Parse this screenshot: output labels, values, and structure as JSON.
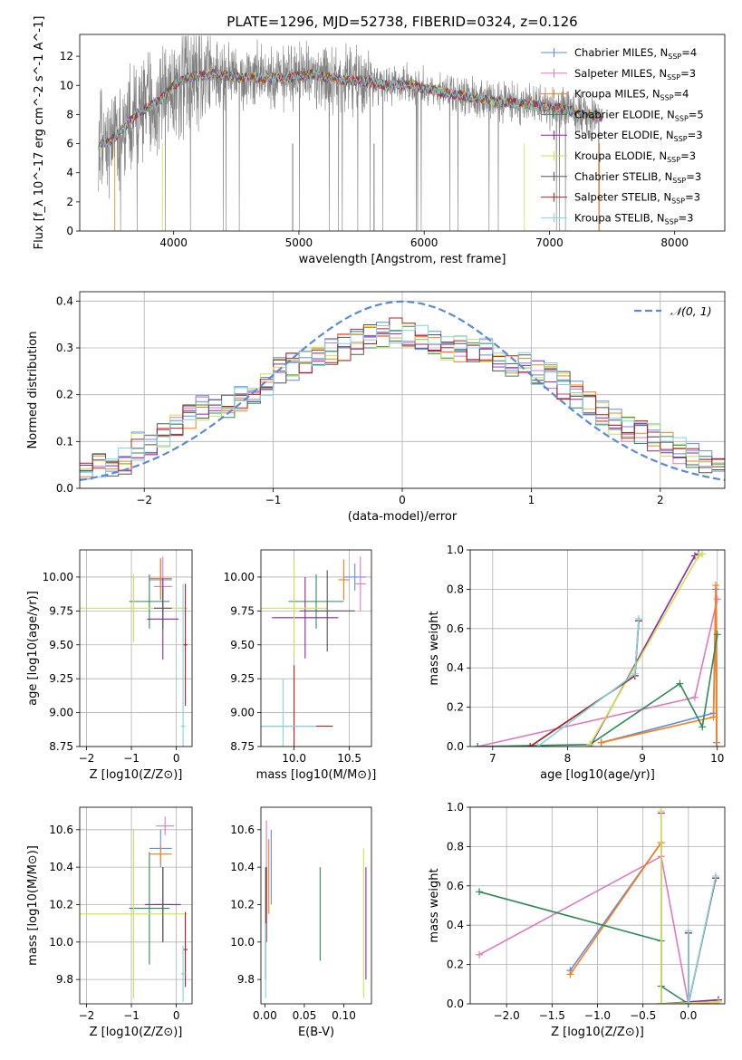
{
  "figure": {
    "suptitle": "PLATE=1296, MJD=52738, FIBERID=0324, z=0.126"
  },
  "legend_colors": {
    "Chabrier MILES": "#5b8def",
    "Salpeter MILES": "#e377c2",
    "Kroupa MILES": "#ff7f0e",
    "Chabrier ELODIE": "#2e8b57",
    "Salpeter ELODIE": "#8e24aa",
    "Kroupa ELODIE": "#c8e64b",
    "Chabrier STELIB": "#555555",
    "Salpeter STELIB": "#b22222",
    "Kroupa STELIB": "#7fd4e6"
  },
  "chart_data": [
    {
      "id": "spectrum",
      "type": "line",
      "title": "",
      "xlabel": "wavelength [Angstrom, rest frame]",
      "ylabel": "Flux [f_λ 10^-17 erg cm^-2 s^-1 A^-1]",
      "xlim": [
        3250,
        8400
      ],
      "ylim": [
        0,
        13.5
      ],
      "xticks": [
        4000,
        5000,
        6000,
        7000,
        8000
      ],
      "yticks": [
        0,
        2,
        4,
        6,
        8,
        10,
        12
      ],
      "grid": false,
      "legend_position": "upper right",
      "data_envelope": {
        "x": [
          3400,
          3500,
          3700,
          3900,
          4000,
          4100,
          4300,
          4500,
          4700,
          4900,
          5100,
          5300,
          5500,
          5700,
          5900,
          6100,
          6300,
          6500,
          6700,
          6900,
          7100,
          7300,
          7400
        ],
        "y": [
          5.9,
          6.2,
          8.0,
          9.0,
          10.0,
          10.5,
          10.8,
          10.6,
          10.5,
          10.5,
          10.8,
          10.4,
          10.3,
          10.0,
          10.0,
          9.6,
          9.3,
          9.0,
          8.8,
          8.6,
          8.4,
          8.0,
          7.9
        ]
      },
      "series": [
        {
          "name": "Chabrier MILES",
          "legend_label": "Chabrier MILES, N_SSP=4"
        },
        {
          "name": "Salpeter MILES",
          "legend_label": "Salpeter MILES, N_SSP=3"
        },
        {
          "name": "Kroupa MILES",
          "legend_label": "Kroupa MILES, N_SSP=4"
        },
        {
          "name": "Chabrier ELODIE",
          "legend_label": "Chabrier ELODIE, N_SSP=5"
        },
        {
          "name": "Salpeter ELODIE",
          "legend_label": "Salpeter ELODIE, N_SSP=3"
        },
        {
          "name": "Kroupa ELODIE",
          "legend_label": "Kroupa ELODIE, N_SSP=3"
        },
        {
          "name": "Chabrier STELIB",
          "legend_label": "Chabrier STELIB, N_SSP=3"
        },
        {
          "name": "Salpeter STELIB",
          "legend_label": "Salpeter STELIB, N_SSP=3"
        },
        {
          "name": "Kroupa STELIB",
          "legend_label": "Kroupa STELIB, N_SSP=3"
        }
      ]
    },
    {
      "id": "residuals",
      "type": "line",
      "title": "",
      "xlabel": "(data-model)/error",
      "ylabel": "Normed distribution",
      "xlim": [
        -2.5,
        2.5
      ],
      "ylim": [
        0,
        0.42
      ],
      "xticks": [
        -2,
        -1,
        0,
        1,
        2
      ],
      "yticks": [
        0.0,
        0.1,
        0.2,
        0.3,
        0.4
      ],
      "grid": true,
      "legend_position": "upper right",
      "reference_curve": {
        "name": "𝒩(0, 1)",
        "mean": 0,
        "sigma": 1,
        "style": "dashed"
      },
      "histogram_centers": [
        -2.45,
        -2.35,
        -2.25,
        -2.15,
        -2.05,
        -1.95,
        -1.85,
        -1.75,
        -1.65,
        -1.55,
        -1.45,
        -1.35,
        -1.25,
        -1.15,
        -1.05,
        -0.95,
        -0.85,
        -0.75,
        -0.65,
        -0.55,
        -0.45,
        -0.35,
        -0.25,
        -0.15,
        -0.05,
        0.05,
        0.15,
        0.25,
        0.35,
        0.45,
        0.55,
        0.65,
        0.75,
        0.85,
        0.95,
        1.05,
        1.15,
        1.25,
        1.35,
        1.45,
        1.55,
        1.65,
        1.75,
        1.85,
        1.95,
        2.05,
        2.15,
        2.25,
        2.35,
        2.45
      ],
      "histogram_mean": [
        0.04,
        0.045,
        0.05,
        0.06,
        0.09,
        0.085,
        0.11,
        0.13,
        0.15,
        0.17,
        0.17,
        0.18,
        0.19,
        0.2,
        0.22,
        0.25,
        0.26,
        0.27,
        0.28,
        0.29,
        0.3,
        0.31,
        0.33,
        0.33,
        0.34,
        0.33,
        0.32,
        0.31,
        0.3,
        0.3,
        0.3,
        0.3,
        0.27,
        0.26,
        0.27,
        0.25,
        0.24,
        0.22,
        0.2,
        0.18,
        0.16,
        0.14,
        0.13,
        0.12,
        0.11,
        0.09,
        0.08,
        0.07,
        0.06,
        0.06
      ]
    },
    {
      "id": "age-vs-Z",
      "type": "scatter",
      "title": "",
      "xlabel": "Z [log10(Z/Z⊙)]",
      "ylabel": "age [log10(age/yr)]",
      "xlim": [
        -2.15,
        0.35
      ],
      "ylim": [
        8.75,
        10.2
      ],
      "xticks": [
        -2,
        -1,
        0
      ],
      "yticks": [
        8.75,
        9.0,
        9.25,
        9.5,
        9.75,
        10.0
      ],
      "grid": true,
      "points": [
        {
          "series": "Chabrier MILES",
          "x": -0.35,
          "y": 9.98,
          "xerr": 0.25,
          "yerr": 0.15
        },
        {
          "series": "Salpeter MILES",
          "x": -0.3,
          "y": 9.93,
          "xerr": 0.2,
          "yerr": 0.22
        },
        {
          "series": "Kroupa MILES",
          "x": -0.35,
          "y": 9.99,
          "xerr": 0.25,
          "yerr": 0.15
        },
        {
          "series": "Chabrier ELODIE",
          "x": -0.6,
          "y": 9.82,
          "xerr": 0.45,
          "yerr": 0.2
        },
        {
          "series": "Salpeter ELODIE",
          "x": -0.3,
          "y": 9.69,
          "xerr": 0.35,
          "yerr": 0.3
        },
        {
          "series": "Kroupa ELODIE",
          "x": -0.95,
          "y": 9.77,
          "xerr": 1.2,
          "yerr": 0.25
        },
        {
          "series": "Chabrier STELIB",
          "x": -0.3,
          "y": 9.77,
          "xerr": 0.2,
          "yerr": 0.15
        },
        {
          "series": "Salpeter STELIB",
          "x": 0.2,
          "y": 9.5,
          "xerr": 0.05,
          "yerr": 0.45
        },
        {
          "series": "Kroupa STELIB",
          "x": 0.15,
          "y": 8.9,
          "xerr": 0.05,
          "yerr": 1.05
        }
      ]
    },
    {
      "id": "age-vs-mass",
      "type": "scatter",
      "title": "",
      "xlabel": "mass [log10(M/M⊙)]",
      "ylabel": "",
      "xlim": [
        9.7,
        10.7
      ],
      "ylim": [
        8.75,
        10.2
      ],
      "xticks": [
        10.0,
        10.5
      ],
      "yticks": [
        8.75,
        9.0,
        9.25,
        9.5,
        9.75,
        10.0
      ],
      "grid": true,
      "points": [
        {
          "series": "Chabrier MILES",
          "x": 10.55,
          "y": 10.0,
          "xerr": 0.1,
          "yerr": 0.1
        },
        {
          "series": "Salpeter MILES",
          "x": 10.6,
          "y": 9.95,
          "xerr": 0.05,
          "yerr": 0.2
        },
        {
          "series": "Kroupa MILES",
          "x": 10.45,
          "y": 9.98,
          "xerr": 0.05,
          "yerr": 0.15
        },
        {
          "series": "Chabrier ELODIE",
          "x": 10.2,
          "y": 9.82,
          "xerr": 0.25,
          "yerr": 0.2
        },
        {
          "series": "Salpeter ELODIE",
          "x": 10.1,
          "y": 9.7,
          "xerr": 0.3,
          "yerr": 0.3
        },
        {
          "series": "Kroupa ELODIE",
          "x": 10.0,
          "y": 9.77,
          "xerr": 0.3,
          "yerr": 0.35
        },
        {
          "series": "Chabrier STELIB",
          "x": 10.3,
          "y": 9.75,
          "xerr": 0.25,
          "yerr": 0.3
        },
        {
          "series": "Salpeter STELIB",
          "x": 10.0,
          "y": 8.9,
          "xerr": 0.35,
          "yerr": 0.45
        },
        {
          "series": "Kroupa STELIB",
          "x": 9.9,
          "y": 8.9,
          "xerr": 0.3,
          "yerr": 0.35
        }
      ]
    },
    {
      "id": "weight-vs-age",
      "type": "line",
      "title": "",
      "xlabel": "age [log10(age/yr)]",
      "ylabel": "mass weight",
      "xlim": [
        6.7,
        10.1
      ],
      "ylim": [
        0,
        1.0
      ],
      "xticks": [
        7,
        8,
        9,
        10
      ],
      "yticks": [
        0.0,
        0.2,
        0.4,
        0.6,
        0.8,
        1.0
      ],
      "grid": true,
      "series": [
        {
          "name": "Chabrier MILES",
          "x": [
            8.45,
            9.95,
            9.98,
            9.99
          ],
          "y": [
            0.02,
            0.17,
            0.8,
            0.02
          ]
        },
        {
          "name": "Salpeter MILES",
          "x": [
            6.8,
            9.7,
            10.0
          ],
          "y": [
            0.0,
            0.25,
            0.75
          ]
        },
        {
          "name": "Kroupa MILES",
          "x": [
            8.45,
            9.95,
            9.98,
            9.99
          ],
          "y": [
            0.02,
            0.15,
            0.82,
            0.0
          ]
        },
        {
          "name": "Chabrier ELODIE",
          "x": [
            6.8,
            8.3,
            9.5,
            9.8,
            10.0
          ],
          "y": [
            0.0,
            0.01,
            0.32,
            0.1,
            0.57
          ]
        },
        {
          "name": "Salpeter ELODIE",
          "x": [
            8.3,
            9.7,
            9.75
          ],
          "y": [
            0.0,
            0.97,
            0.98
          ]
        },
        {
          "name": "Kroupa ELODIE",
          "x": [
            8.3,
            9.75,
            9.8
          ],
          "y": [
            0.01,
            0.97,
            0.98
          ]
        },
        {
          "name": "Chabrier STELIB",
          "x": [
            7.5,
            8.9,
            8.95
          ],
          "y": [
            0.0,
            0.36,
            0.64
          ]
        },
        {
          "name": "Salpeter STELIB",
          "x": [
            7.5,
            8.9,
            8.95
          ],
          "y": [
            0.0,
            0.36,
            0.64
          ]
        },
        {
          "name": "Kroupa STELIB",
          "x": [
            7.6,
            8.9,
            8.95
          ],
          "y": [
            0.0,
            0.37,
            0.65
          ]
        }
      ]
    },
    {
      "id": "mass-vs-Z",
      "type": "scatter",
      "title": "",
      "xlabel": "Z [log10(Z/Z⊙)]",
      "ylabel": "mass [log10(M/M⊙)]",
      "xlim": [
        -2.15,
        0.35
      ],
      "ylim": [
        9.67,
        10.72
      ],
      "xticks": [
        -2,
        -1,
        0
      ],
      "yticks": [
        9.8,
        10.0,
        10.2,
        10.4,
        10.6
      ],
      "grid": true,
      "points": [
        {
          "series": "Chabrier MILES",
          "x": -0.35,
          "y": 10.5,
          "xerr": 0.25,
          "yerr": 0.1
        },
        {
          "series": "Salpeter MILES",
          "x": -0.25,
          "y": 10.62,
          "xerr": 0.2,
          "yerr": 0.05
        },
        {
          "series": "Kroupa MILES",
          "x": -0.35,
          "y": 10.47,
          "xerr": 0.25,
          "yerr": 0.05
        },
        {
          "series": "Chabrier ELODIE",
          "x": -0.6,
          "y": 10.18,
          "xerr": 0.45,
          "yerr": 0.3
        },
        {
          "series": "Salpeter ELODIE",
          "x": -0.3,
          "y": 10.2,
          "xerr": 0.4,
          "yerr": 0.2
        },
        {
          "series": "Kroupa ELODIE",
          "x": -0.95,
          "y": 10.15,
          "xerr": 1.2,
          "yerr": 0.45
        },
        {
          "series": "Chabrier STELIB",
          "x": -0.3,
          "y": 10.2,
          "xerr": 0.2,
          "yerr": 0.2
        },
        {
          "series": "Salpeter STELIB",
          "x": 0.2,
          "y": 9.96,
          "xerr": 0.05,
          "yerr": 0.2
        },
        {
          "series": "Kroupa STELIB",
          "x": 0.15,
          "y": 9.83,
          "xerr": 0.05,
          "yerr": 0.15
        }
      ]
    },
    {
      "id": "mass-vs-EBV",
      "type": "scatter",
      "title": "",
      "xlabel": "E(B-V)",
      "ylabel": "",
      "xlim": [
        -0.005,
        0.135
      ],
      "ylim": [
        9.67,
        10.72
      ],
      "xticks": [
        0.0,
        0.05,
        0.1
      ],
      "yticks": [
        9.8,
        10.0,
        10.2,
        10.4,
        10.6
      ],
      "grid": false,
      "points": [
        {
          "series": "Chabrier MILES",
          "x": 0.008,
          "y": 10.4,
          "xerr": 0,
          "yerr": 0.2
        },
        {
          "series": "Salpeter MILES",
          "x": 0.002,
          "y": 10.4,
          "xerr": 0,
          "yerr": 0.25
        },
        {
          "series": "Kroupa MILES",
          "x": 0.005,
          "y": 10.35,
          "xerr": 0,
          "yerr": 0.2
        },
        {
          "series": "Chabrier ELODIE",
          "x": 0.07,
          "y": 10.15,
          "xerr": 0,
          "yerr": 0.25
        },
        {
          "series": "Salpeter ELODIE",
          "x": 0.128,
          "y": 10.1,
          "xerr": 0,
          "yerr": 0.3
        },
        {
          "series": "Kroupa ELODIE",
          "x": 0.125,
          "y": 10.1,
          "xerr": 0,
          "yerr": 0.4
        },
        {
          "series": "Chabrier STELIB",
          "x": 0.001,
          "y": 10.1,
          "xerr": 0,
          "yerr": 0.3
        },
        {
          "series": "Salpeter STELIB",
          "x": 0.002,
          "y": 10.2,
          "xerr": 0,
          "yerr": 0.2
        },
        {
          "series": "Kroupa STELIB",
          "x": 0.001,
          "y": 9.9,
          "xerr": 0,
          "yerr": 0.2
        }
      ]
    },
    {
      "id": "weight-vs-Z",
      "type": "line",
      "title": "",
      "xlabel": "Z [log10(Z/Z⊙)]",
      "ylabel": "mass weight",
      "xlim": [
        -2.4,
        0.4
      ],
      "ylim": [
        0,
        1.0
      ],
      "xticks": [
        -2.0,
        -1.5,
        -1.0,
        -0.5,
        0.0
      ],
      "yticks": [
        0.0,
        0.2,
        0.4,
        0.6,
        0.8,
        1.0
      ],
      "grid": true,
      "series": [
        {
          "name": "Chabrier MILES",
          "x": [
            -1.3,
            -0.3,
            -0.3,
            0.33
          ],
          "y": [
            0.17,
            0.82,
            0.0,
            0.02
          ]
        },
        {
          "name": "Salpeter MILES",
          "x": [
            -2.3,
            -0.3,
            0.0,
            0.33
          ],
          "y": [
            0.25,
            0.75,
            0.0,
            0.01
          ]
        },
        {
          "name": "Kroupa MILES",
          "x": [
            -1.3,
            -0.3,
            -0.3,
            0.33
          ],
          "y": [
            0.15,
            0.82,
            0.0,
            0.0
          ]
        },
        {
          "name": "Chabrier ELODIE",
          "x": [
            -2.3,
            -0.3,
            -0.3,
            0.0
          ],
          "y": [
            0.57,
            0.32,
            0.09,
            0.0
          ]
        },
        {
          "name": "Salpeter ELODIE",
          "x": [
            -0.3,
            -0.3,
            0.33
          ],
          "y": [
            0.97,
            0.0,
            0.02
          ]
        },
        {
          "name": "Kroupa ELODIE",
          "x": [
            -0.3,
            -0.3,
            0.33
          ],
          "y": [
            0.98,
            0.0,
            0.01
          ]
        },
        {
          "name": "Chabrier STELIB",
          "x": [
            0.0,
            0.0,
            0.3
          ],
          "y": [
            0.36,
            0.0,
            0.64
          ]
        },
        {
          "name": "Salpeter STELIB",
          "x": [
            0.0,
            0.0,
            0.3
          ],
          "y": [
            0.36,
            0.0,
            0.64
          ]
        },
        {
          "name": "Kroupa STELIB",
          "x": [
            0.0,
            0.0,
            0.3
          ],
          "y": [
            0.37,
            0.0,
            0.65
          ]
        }
      ]
    }
  ]
}
